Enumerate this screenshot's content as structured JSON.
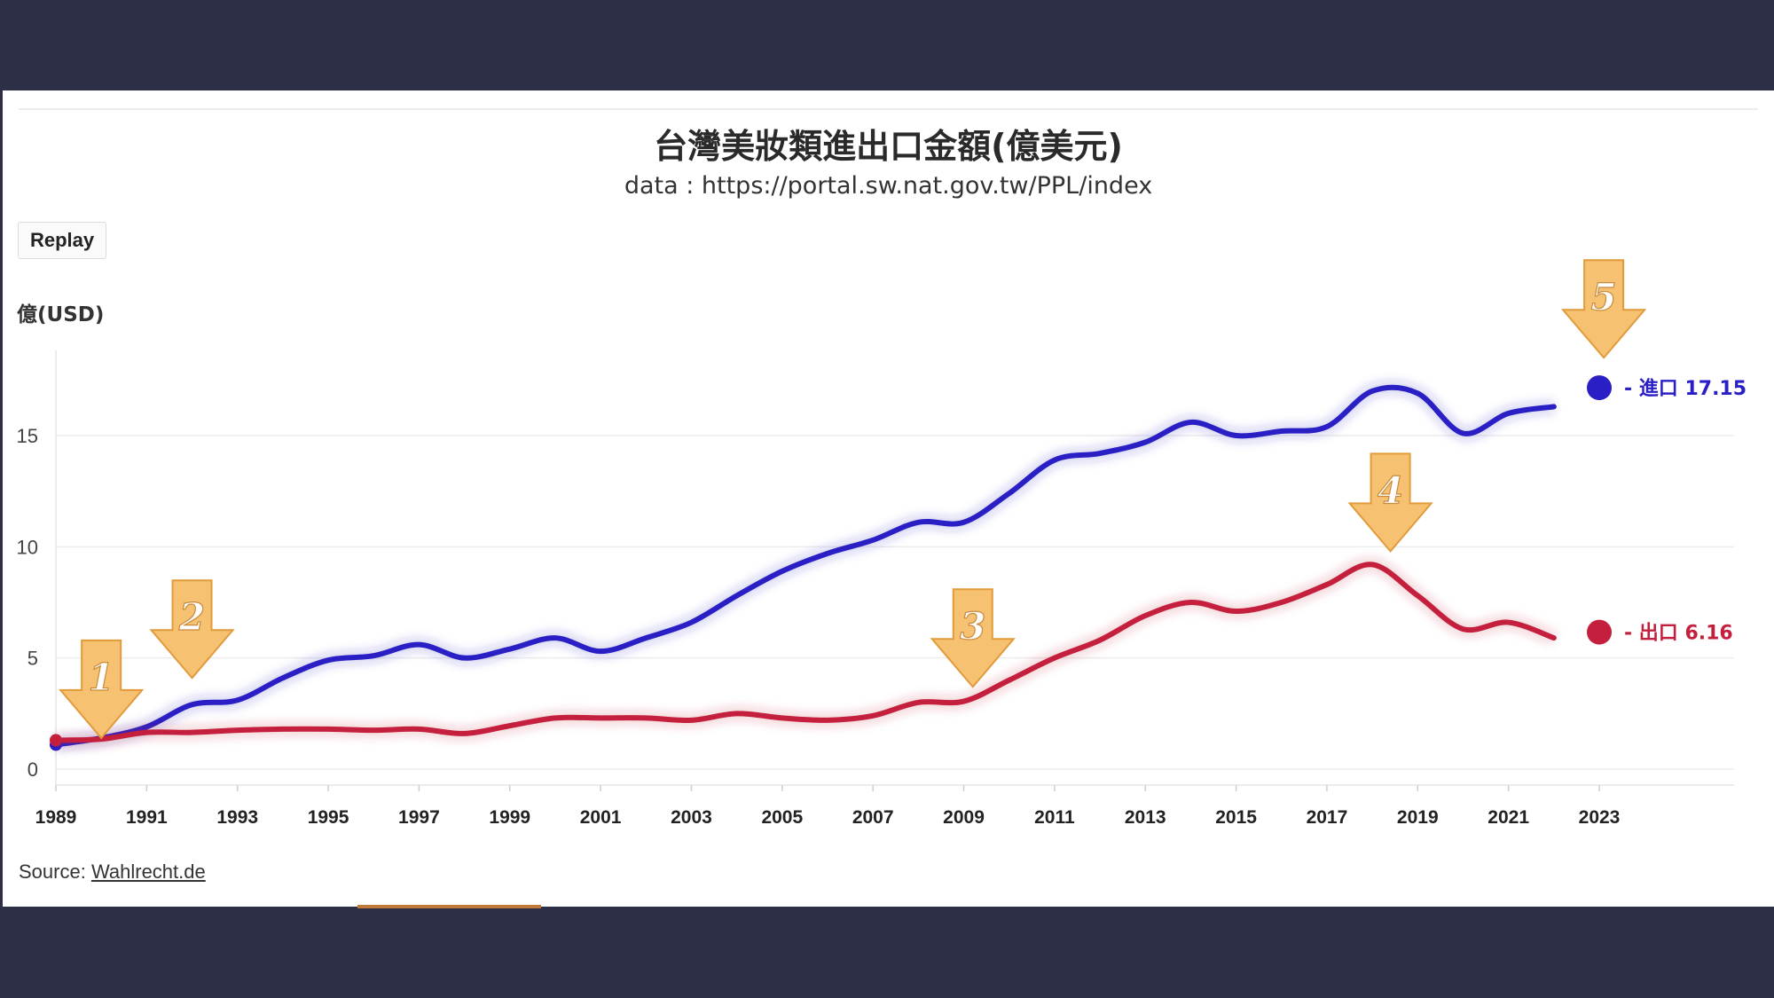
{
  "header": {
    "title": "台灣美妝類進出口金額(億美元)",
    "subtitle": "data : https://portal.sw.nat.gov.tw/PPL/index"
  },
  "controls": {
    "replay_label": "Replay"
  },
  "footer": {
    "source_prefix": "Source: ",
    "source_link": "Wahlrecht.de"
  },
  "colors": {
    "import": "#2a1fc4",
    "export": "#c41f3c",
    "arrow_fill": "#f6c272",
    "arrow_stroke": "#e29a3a"
  },
  "chart_data": {
    "type": "line",
    "title": "台灣美妝類進出口金額(億美元)",
    "subtitle": "data : https://portal.sw.nat.gov.tw/PPL/index",
    "ylabel": "億(USD)",
    "xlabel": "",
    "ylim": [
      0,
      18
    ],
    "yticks": [
      0,
      5,
      10,
      15
    ],
    "xticks": [
      1989,
      1991,
      1993,
      1995,
      1997,
      1999,
      2001,
      2003,
      2005,
      2007,
      2009,
      2011,
      2013,
      2015,
      2017,
      2019,
      2021,
      2023
    ],
    "grid": true,
    "x": [
      1989,
      1990,
      1991,
      1992,
      1993,
      1994,
      1995,
      1996,
      1997,
      1998,
      1999,
      2000,
      2001,
      2002,
      2003,
      2004,
      2005,
      2006,
      2007,
      2008,
      2009,
      2010,
      2011,
      2012,
      2013,
      2014,
      2015,
      2016,
      2017,
      2018,
      2019,
      2020,
      2021,
      2022,
      2023
    ],
    "series": [
      {
        "name": "進口",
        "end_label": "- 進口 17.15",
        "color": "#2a1fc4",
        "values": [
          1.1,
          1.4,
          1.9,
          2.9,
          3.1,
          4.1,
          4.9,
          5.1,
          5.6,
          5.0,
          5.4,
          5.9,
          5.3,
          5.9,
          6.6,
          7.8,
          8.9,
          9.7,
          10.3,
          11.1,
          11.1,
          12.4,
          13.9,
          14.2,
          14.7,
          15.6,
          15.0,
          15.2,
          15.4,
          17.0,
          16.9,
          15.1,
          16.0,
          16.3,
          17.15
        ]
      },
      {
        "name": "出口",
        "end_label": "- 出口 6.16",
        "color": "#c41f3c",
        "values": [
          1.3,
          1.35,
          1.65,
          1.65,
          1.75,
          1.8,
          1.8,
          1.75,
          1.8,
          1.6,
          1.95,
          2.3,
          2.3,
          2.3,
          2.2,
          2.5,
          2.3,
          2.2,
          2.4,
          3.0,
          3.05,
          4.0,
          5.0,
          5.8,
          6.9,
          7.5,
          7.1,
          7.5,
          8.3,
          9.2,
          7.8,
          6.3,
          6.6,
          5.9,
          6.16
        ]
      }
    ],
    "annotations": [
      {
        "label": "1",
        "x": 1990,
        "y": 1.4
      },
      {
        "label": "2",
        "x": 1992,
        "y": 4.1
      },
      {
        "label": "3",
        "x": 2009.2,
        "y": 3.7
      },
      {
        "label": "4",
        "x": 2018.4,
        "y": 9.8
      },
      {
        "label": "5",
        "x": 2023.1,
        "y": 18.5
      }
    ]
  }
}
